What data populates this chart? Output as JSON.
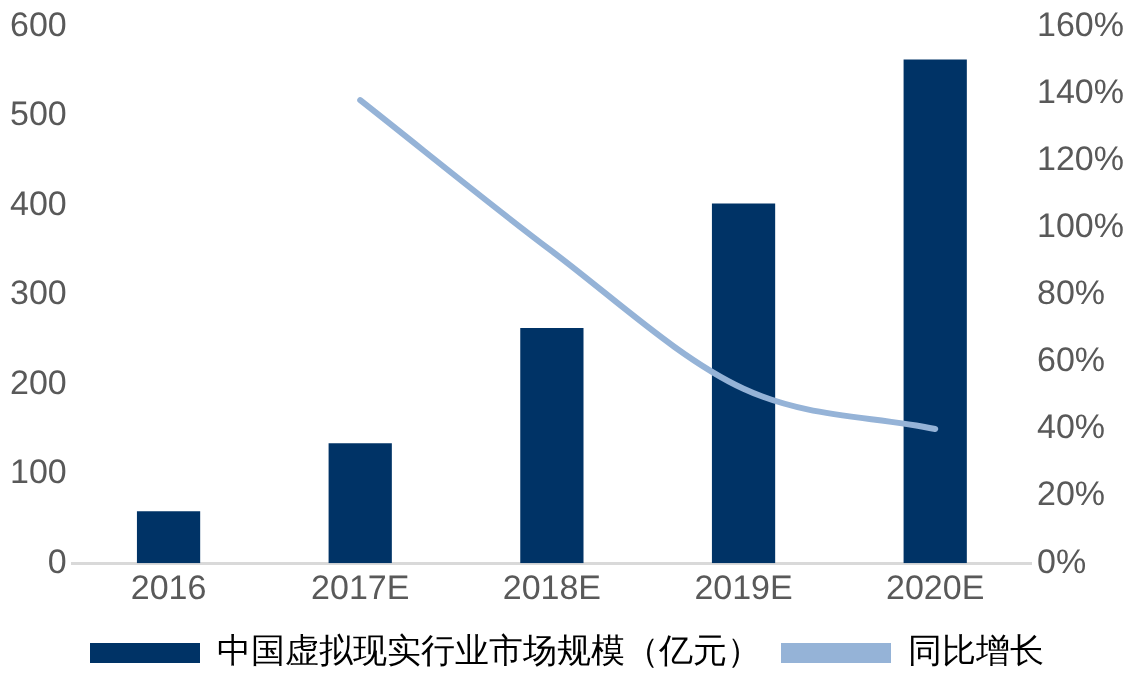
{
  "chart_data": {
    "type": "bar",
    "categories": [
      "2016",
      "2017E",
      "2018E",
      "2019E",
      "2020E"
    ],
    "series": [
      {
        "name": "中国虚拟现实行业市场规模（亿元）",
        "color": "#003366",
        "values": [
          58,
          134,
          263,
          402,
          563
        ]
      },
      {
        "name": "同比增长",
        "type": "line",
        "axis": "y2",
        "color": "#95b3d7",
        "values": [
          null,
          138,
          93,
          52,
          40
        ]
      }
    ],
    "ylim": [
      0,
      600
    ],
    "yticks": [
      0,
      100,
      200,
      300,
      400,
      500,
      600
    ],
    "y2lim": [
      0,
      160
    ],
    "y2ticks": [
      {
        "value": 0,
        "label": "0%"
      },
      {
        "value": 20,
        "label": "20%"
      },
      {
        "value": 40,
        "label": "40%"
      },
      {
        "value": 60,
        "label": "60%"
      },
      {
        "value": 80,
        "label": "80%"
      },
      {
        "value": 100,
        "label": "100%"
      },
      {
        "value": 120,
        "label": "120%"
      },
      {
        "value": 140,
        "label": "140%"
      },
      {
        "value": 160,
        "label": "160%"
      }
    ],
    "grid": false,
    "legend": "bottom",
    "marker": "none"
  }
}
